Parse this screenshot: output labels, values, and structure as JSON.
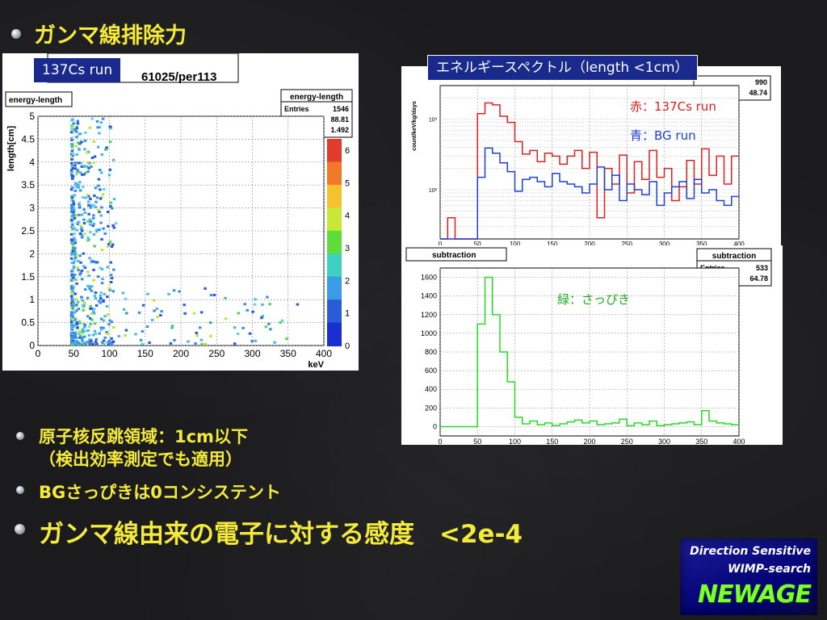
{
  "slide": {
    "title": "ガンマ線排除力",
    "bullets": [
      {
        "line1": "原子核反跳領域：1cm以下",
        "line2": "（検出効率測定でも適用）"
      },
      {
        "line1": "BGさっぴきは0コンシステント"
      },
      {
        "line1": "ガンマ線由来の電子に対する感度　<2e-4"
      }
    ]
  },
  "left_panel": {
    "run_tag": "137Cs  run",
    "run_id": "61025/per113",
    "hist_title": "energy-length",
    "stats": {
      "title": "energy-length",
      "rows": [
        [
          "Entries",
          "1546"
        ],
        [
          "Mean x",
          "88.81"
        ],
        [
          "Mean y",
          "1.492"
        ]
      ]
    }
  },
  "right_panel": {
    "tag": "エネルギースペクトル（length <1cm）",
    "legend_red": "赤：137Cs run",
    "legend_blue": "青：BG run",
    "legend_green": "緑：さっぴき",
    "top_stats": {
      "rows": [
        [
          "",
          "990"
        ],
        [
          "Mean",
          "48.74"
        ]
      ]
    },
    "sub_title": "subtraction",
    "sub_stats": {
      "title": "subtraction",
      "rows": [
        [
          "Entries",
          "533"
        ],
        [
          "Mean",
          "64.78"
        ]
      ]
    }
  },
  "logo": {
    "line1": "Direction Sensitive",
    "line2": "WIMP-search",
    "line3": "NEWAGE"
  },
  "chart_data": [
    {
      "type": "heatmap",
      "xlabel": "keV",
      "ylabel": "length[cm]",
      "xlim": [
        0,
        400
      ],
      "ylim": [
        0,
        5
      ],
      "xticks": [
        0,
        50,
        100,
        150,
        200,
        250,
        300,
        350,
        400
      ],
      "yticks": [
        0,
        0.5,
        1,
        1.5,
        2,
        2.5,
        3,
        3.5,
        4,
        4.5,
        5
      ],
      "colorbar": {
        "ticks": [
          0,
          1,
          2,
          3,
          4,
          5,
          6
        ]
      },
      "grid": true
    },
    {
      "type": "line",
      "log_y": true,
      "ylabel": "count/keV/kg/days",
      "xlim": [
        0,
        400
      ],
      "xticks": [
        0,
        50,
        100,
        150,
        200,
        250,
        300,
        350,
        400
      ],
      "yticks": [
        "10²",
        "10³"
      ],
      "grid": true,
      "x": [
        0,
        10,
        20,
        30,
        40,
        50,
        60,
        70,
        80,
        90,
        100,
        110,
        120,
        130,
        140,
        150,
        160,
        170,
        180,
        190,
        200,
        210,
        220,
        230,
        240,
        250,
        260,
        270,
        280,
        290,
        300,
        310,
        320,
        330,
        340,
        350,
        360,
        370,
        380,
        390
      ],
      "series": [
        {
          "name": "137Cs run",
          "color": "#e02020",
          "values": [
            0,
            40,
            0,
            0,
            0,
            1200,
            1700,
            1600,
            1100,
            900,
            480,
            320,
            360,
            250,
            330,
            300,
            230,
            300,
            360,
            200,
            340,
            40,
            200,
            120,
            310,
            90,
            250,
            140,
            360,
            150,
            200,
            70,
            110,
            260,
            120,
            380,
            160,
            300,
            120,
            300
          ]
        },
        {
          "name": "BG run",
          "color": "#1f3fd6",
          "values": [
            0,
            0,
            0,
            0,
            0,
            150,
            390,
            330,
            240,
            180,
            95,
            140,
            150,
            130,
            110,
            170,
            130,
            120,
            110,
            90,
            120,
            210,
            100,
            160,
            70,
            120,
            100,
            85,
            130,
            60,
            90,
            110,
            130,
            75,
            140,
            90,
            100,
            70,
            60,
            80
          ]
        }
      ]
    },
    {
      "type": "line",
      "title": "subtraction",
      "xlim": [
        0,
        400
      ],
      "ylim": [
        -100,
        1700
      ],
      "xticks": [
        0,
        50,
        100,
        150,
        200,
        250,
        300,
        350,
        400
      ],
      "yticks": [
        0,
        200,
        400,
        600,
        800,
        1000,
        1200,
        1400,
        1600
      ],
      "grid": true,
      "x": [
        0,
        10,
        20,
        30,
        40,
        50,
        60,
        70,
        80,
        90,
        100,
        110,
        120,
        130,
        140,
        150,
        160,
        170,
        180,
        190,
        200,
        210,
        220,
        230,
        240,
        250,
        260,
        270,
        280,
        290,
        300,
        310,
        320,
        330,
        340,
        350,
        360,
        370,
        380,
        390
      ],
      "series": [
        {
          "name": "さっぴき",
          "color": "#22dd22",
          "values": [
            0,
            0,
            0,
            0,
            0,
            1100,
            1600,
            1200,
            800,
            480,
            100,
            30,
            60,
            20,
            40,
            10,
            30,
            50,
            70,
            40,
            60,
            20,
            30,
            40,
            80,
            10,
            40,
            20,
            60,
            10,
            20,
            30,
            40,
            50,
            20,
            170,
            60,
            40,
            30,
            20
          ]
        }
      ]
    }
  ]
}
